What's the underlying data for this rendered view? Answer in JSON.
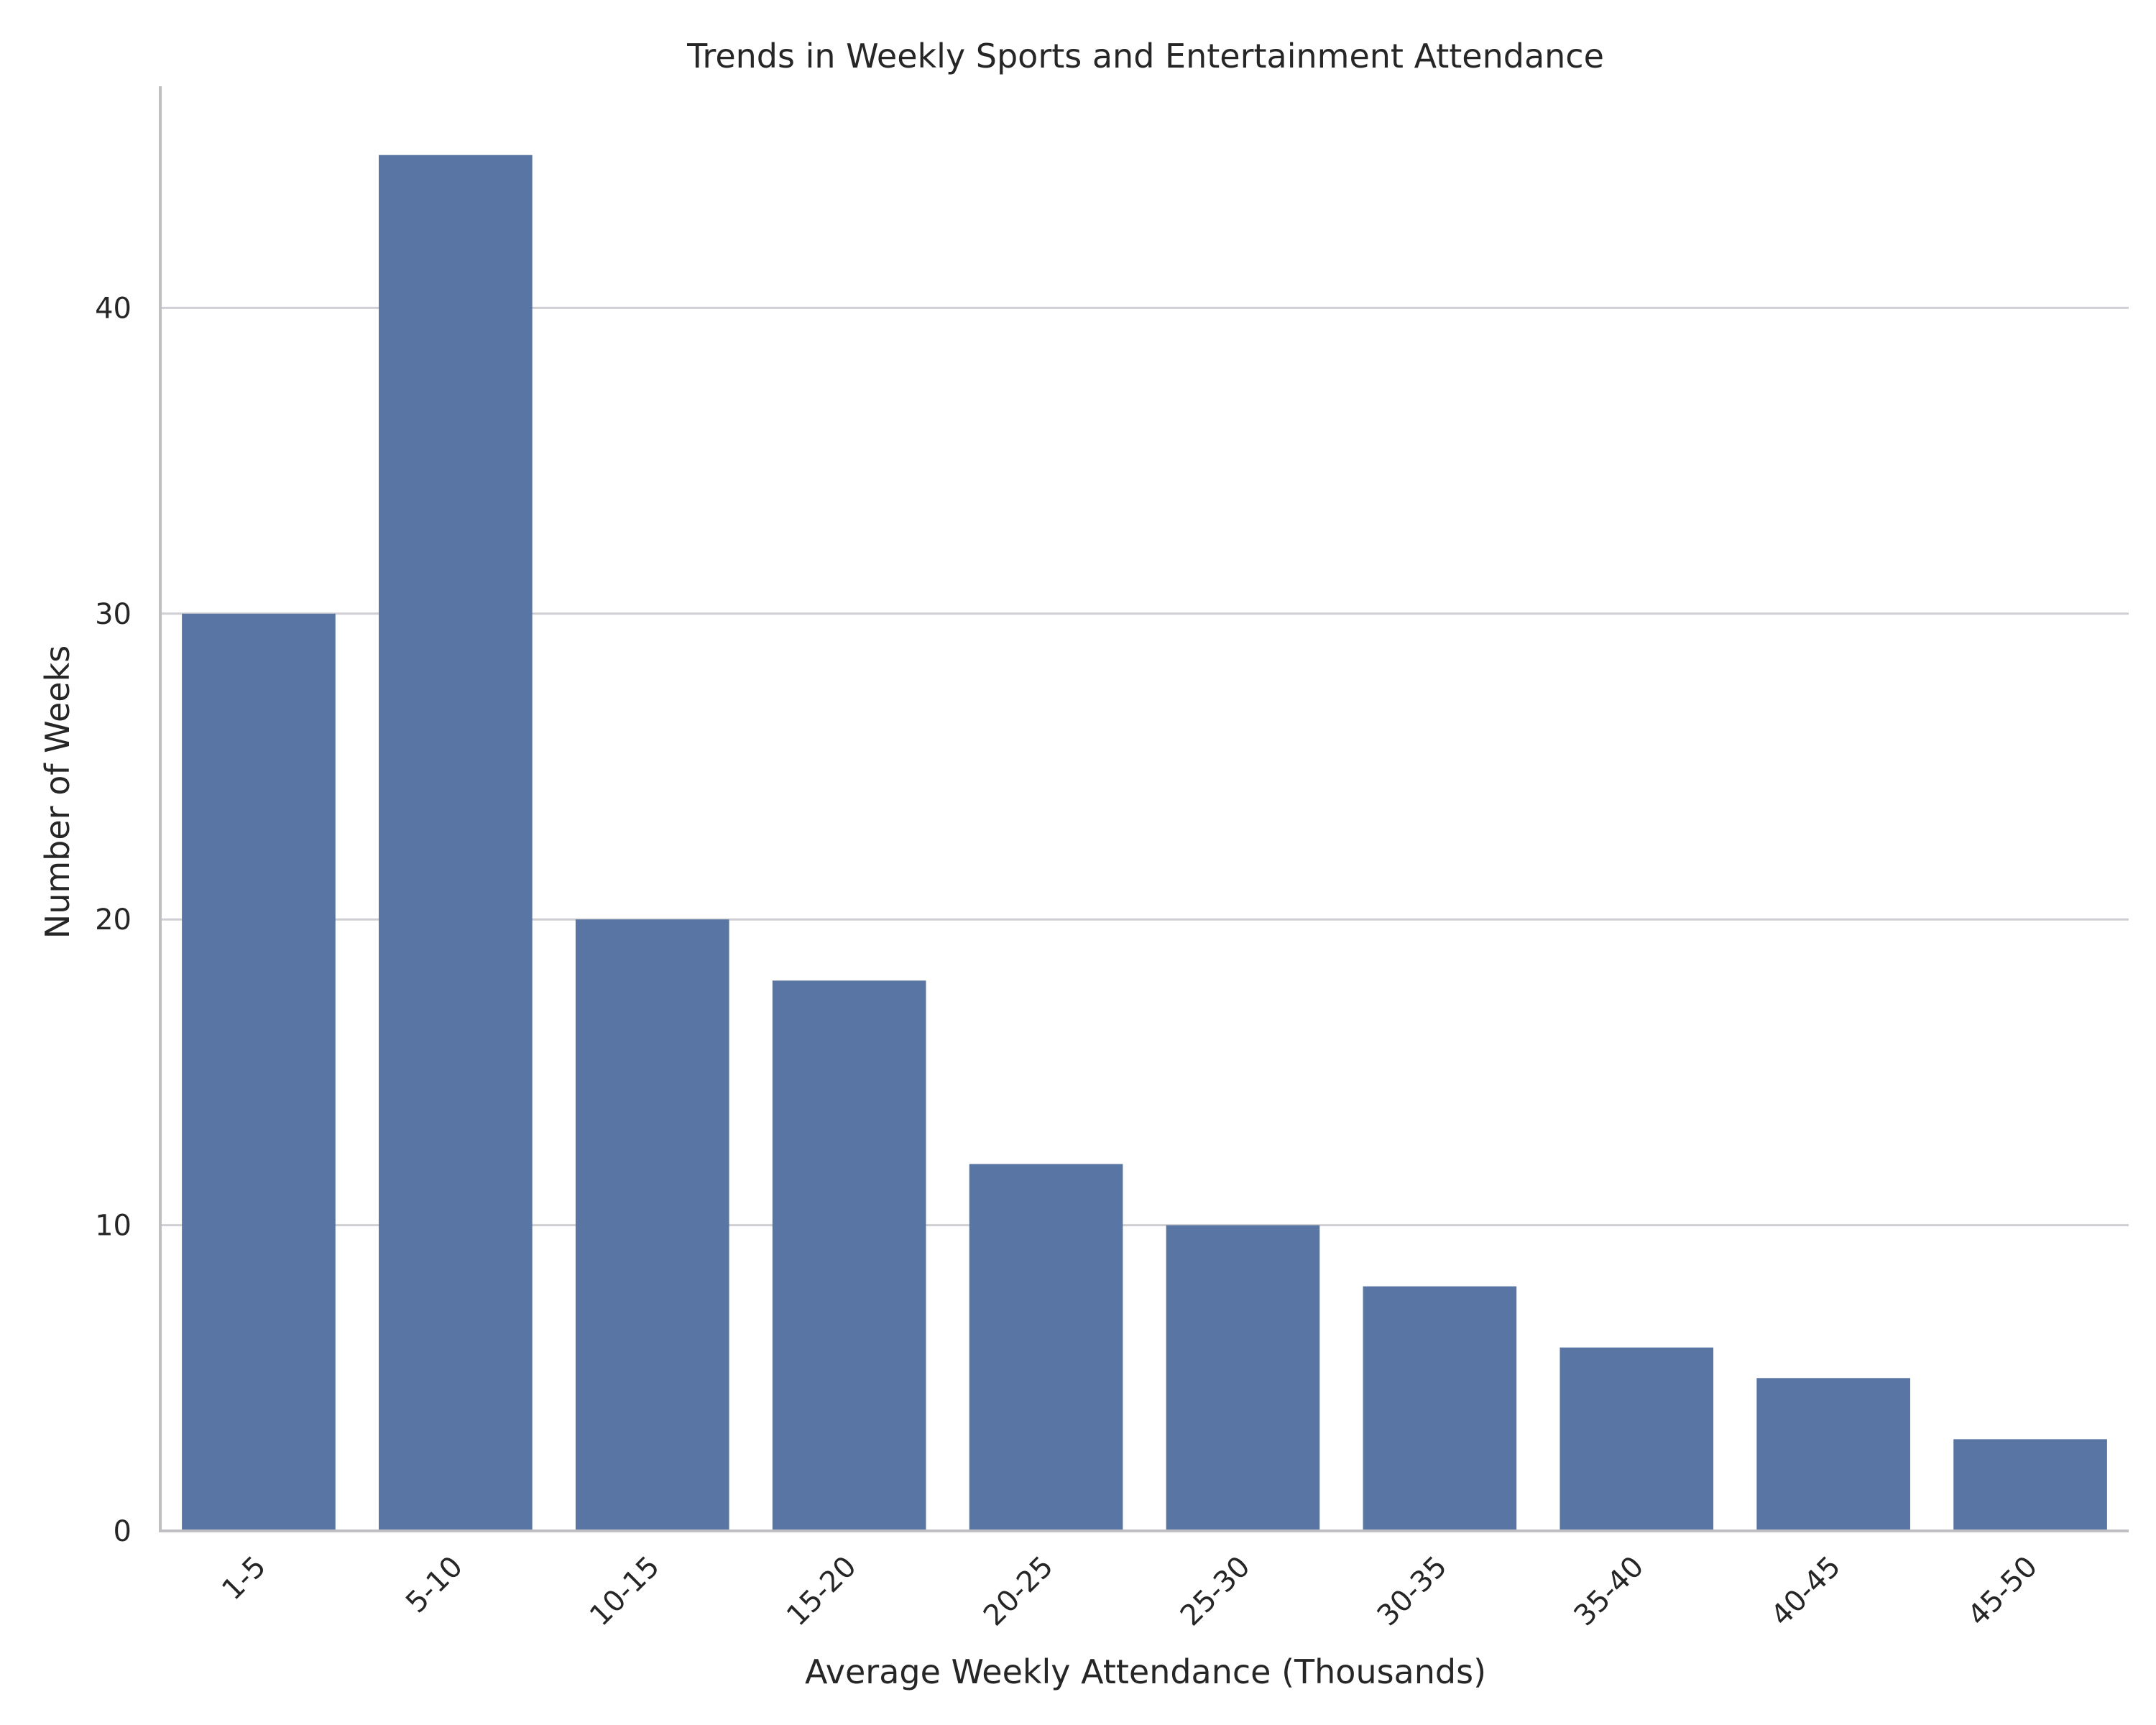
{
  "chart_data": {
    "type": "bar",
    "title": "Trends in Weekly Sports and Entertainment Attendance",
    "xlabel": "Average Weekly Attendance (Thousands)",
    "ylabel": "Number of Weeks",
    "categories": [
      "1-5",
      "5-10",
      "10-15",
      "15-20",
      "20-25",
      "25-30",
      "30-35",
      "35-40",
      "40-45",
      "45-50"
    ],
    "values": [
      30,
      45,
      20,
      18,
      12,
      10,
      8,
      6,
      5,
      3
    ],
    "ylim": [
      0,
      47.25
    ],
    "yticks": [
      0,
      10,
      20,
      30,
      40
    ],
    "grid": "horizontal",
    "bar_color": "#5975a4"
  }
}
